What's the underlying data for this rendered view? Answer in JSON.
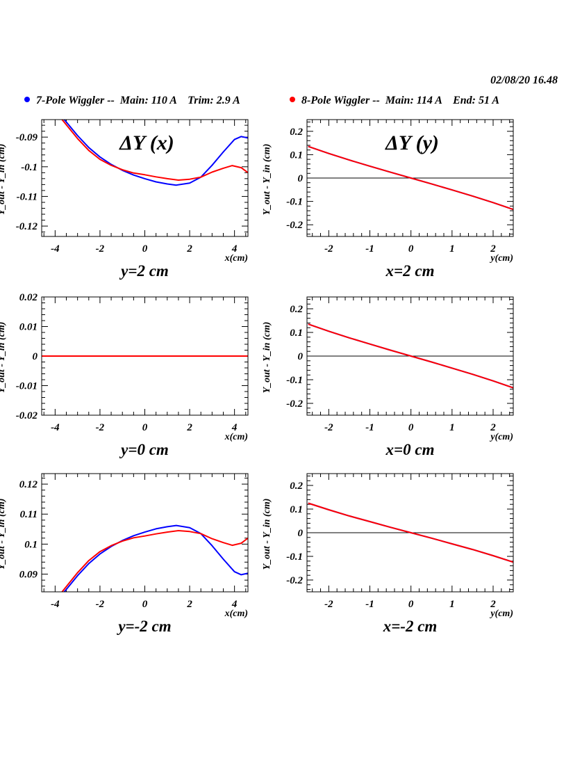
{
  "header": {
    "timestamp": "02/08/20   16.48",
    "legend": [
      {
        "label": "7-Pole Wiggler --  Main: 110 A    Trim: 2.9 A",
        "color": "#0000ff"
      },
      {
        "label": "8-Pole Wiggler --  Main: 114 A    End: 51 A",
        "color": "#ff0000"
      }
    ]
  },
  "chart_data": [
    {
      "type": "line",
      "title": "ΔY (x)",
      "subtitle": "y=2 cm",
      "xlabel": "x(cm)",
      "ylabel": "Y_out - Y_in (cm)",
      "xlim": [
        -4.6,
        4.6
      ],
      "ylim": [
        -0.1235,
        -0.0841
      ],
      "xticks": [
        -4,
        -2,
        0,
        2,
        4
      ],
      "xtick_labels": [
        "-4",
        "-2",
        "0",
        "2",
        "4"
      ],
      "xminor": 0.5,
      "yticks": [
        -0.09,
        -0.1,
        -0.11,
        -0.12
      ],
      "ytick_labels": [
        "-0.09",
        "-0.1",
        "-0.11",
        "-0.12"
      ],
      "yminor": 0.002,
      "zero_line": false,
      "series": [
        {
          "name": "7-Pole Wiggler",
          "color": "#0000ff",
          "x": [
            -3.6,
            -3,
            -2.5,
            -2,
            -1.5,
            -1,
            -0.5,
            0,
            0.5,
            1,
            1.4,
            2,
            2.5,
            3,
            3.5,
            4,
            4.3,
            4.6
          ],
          "y": [
            -0.084,
            -0.0895,
            -0.0935,
            -0.0967,
            -0.0992,
            -0.1012,
            -0.1028,
            -0.104,
            -0.1051,
            -0.1058,
            -0.1062,
            -0.1055,
            -0.1035,
            -0.0995,
            -0.095,
            -0.0908,
            -0.0898,
            -0.0903
          ]
        },
        {
          "name": "8-Pole Wiggler",
          "color": "#ff0000",
          "x": [
            -3.7,
            -3,
            -2.5,
            -2,
            -1.5,
            -1,
            -0.5,
            0,
            0.5,
            1,
            1.5,
            2,
            2.5,
            3,
            3.5,
            3.9,
            4.3,
            4.6
          ],
          "y": [
            -0.084,
            -0.0905,
            -0.0945,
            -0.0975,
            -0.0995,
            -0.101,
            -0.1021,
            -0.1027,
            -0.1034,
            -0.104,
            -0.1045,
            -0.1042,
            -0.1035,
            -0.1018,
            -0.1005,
            -0.0996,
            -0.1003,
            -0.102
          ]
        }
      ]
    },
    {
      "type": "line",
      "title": "ΔY (y)",
      "subtitle": "x=2 cm",
      "xlabel": "y(cm)",
      "ylabel": "Y_out - Y_in (cm)",
      "xlim": [
        -2.53,
        2.49
      ],
      "ylim": [
        -0.25,
        0.25
      ],
      "xticks": [
        -2,
        -1,
        0,
        1,
        2
      ],
      "xtick_labels": [
        "-2",
        "-1",
        "0",
        "1",
        "2"
      ],
      "xminor": 0.2,
      "yticks": [
        0.2,
        0.1,
        0,
        -0.1,
        -0.2
      ],
      "ytick_labels": [
        "0.2",
        "0.1",
        "0",
        "-0.1",
        "-0.2"
      ],
      "yminor": 0.02,
      "zero_line": true,
      "series": [
        {
          "name": "7-Pole Wiggler",
          "color": "#0000ff",
          "x": [
            -2.5,
            -2,
            -1.5,
            -1,
            -0.5,
            0,
            0.5,
            1,
            1.5,
            2,
            2.5
          ],
          "y": [
            0.135,
            0.105,
            0.077,
            0.051,
            0.025,
            0,
            -0.025,
            -0.051,
            -0.077,
            -0.105,
            -0.135
          ]
        },
        {
          "name": "8-Pole Wiggler",
          "color": "#ff0000",
          "x": [
            -2.5,
            -2,
            -1.5,
            -1,
            -0.5,
            0,
            0.5,
            1,
            1.5,
            2,
            2.5
          ],
          "y": [
            0.135,
            0.105,
            0.077,
            0.051,
            0.025,
            0,
            -0.025,
            -0.051,
            -0.077,
            -0.105,
            -0.135
          ]
        }
      ]
    },
    {
      "type": "line",
      "title": "",
      "subtitle": "y=0 cm",
      "xlabel": "x(cm)",
      "ylabel": "Y_out - Y_in (cm)",
      "xlim": [
        -4.6,
        4.6
      ],
      "ylim": [
        -0.02,
        0.02
      ],
      "xticks": [
        -4,
        -2,
        0,
        2,
        4
      ],
      "xtick_labels": [
        "-4",
        "-2",
        "0",
        "2",
        "4"
      ],
      "xminor": 0.5,
      "yticks": [
        0.02,
        0.01,
        0,
        -0.01,
        -0.02
      ],
      "ytick_labels": [
        "0.02",
        "0.01",
        "0",
        "-0.01",
        "-0.02"
      ],
      "yminor": 0.002,
      "zero_line": false,
      "series": [
        {
          "name": "7-Pole Wiggler",
          "color": "#0000ff",
          "x": [
            -4.6,
            4.6
          ],
          "y": [
            0,
            0
          ]
        },
        {
          "name": "8-Pole Wiggler",
          "color": "#ff0000",
          "x": [
            -4.6,
            4.6
          ],
          "y": [
            0,
            0
          ]
        }
      ]
    },
    {
      "type": "line",
      "title": "",
      "subtitle": "x=0 cm",
      "xlabel": "y(cm)",
      "ylabel": "Y_out - Y_in (cm)",
      "xlim": [
        -2.53,
        2.49
      ],
      "ylim": [
        -0.25,
        0.25
      ],
      "xticks": [
        -2,
        -1,
        0,
        1,
        2
      ],
      "xtick_labels": [
        "-2",
        "-1",
        "0",
        "1",
        "2"
      ],
      "xminor": 0.2,
      "yticks": [
        0.2,
        0.1,
        0,
        -0.1,
        -0.2
      ],
      "ytick_labels": [
        "0.2",
        "0.1",
        "0",
        "-0.1",
        "-0.2"
      ],
      "yminor": 0.02,
      "zero_line": true,
      "series": [
        {
          "name": "7-Pole Wiggler",
          "color": "#0000ff",
          "x": [
            -2.5,
            -2,
            -1.5,
            -1,
            -0.5,
            0,
            0.5,
            1,
            1.5,
            2,
            2.5
          ],
          "y": [
            0.135,
            0.105,
            0.077,
            0.051,
            0.025,
            0,
            -0.025,
            -0.051,
            -0.077,
            -0.105,
            -0.135
          ]
        },
        {
          "name": "8-Pole Wiggler",
          "color": "#ff0000",
          "x": [
            -2.5,
            -2,
            -1.5,
            -1,
            -0.5,
            0,
            0.5,
            1,
            1.5,
            2,
            2.5
          ],
          "y": [
            0.135,
            0.105,
            0.077,
            0.051,
            0.025,
            0,
            -0.025,
            -0.051,
            -0.077,
            -0.105,
            -0.135
          ]
        }
      ]
    },
    {
      "type": "line",
      "title": "",
      "subtitle": "y=-2 cm",
      "xlabel": "x(cm)",
      "ylabel": "Y_out - Y_in (cm)",
      "xlim": [
        -4.6,
        4.6
      ],
      "ylim": [
        0.0841,
        0.1235
      ],
      "xticks": [
        -4,
        -2,
        0,
        2,
        4
      ],
      "xtick_labels": [
        "-4",
        "-2",
        "0",
        "2",
        "4"
      ],
      "xminor": 0.5,
      "yticks": [
        0.12,
        0.11,
        0.1,
        0.09
      ],
      "ytick_labels": [
        "0.12",
        "0.11",
        "0.1",
        "0.09"
      ],
      "yminor": 0.002,
      "zero_line": false,
      "series": [
        {
          "name": "7-Pole Wiggler",
          "color": "#0000ff",
          "x": [
            -3.6,
            -3,
            -2.5,
            -2,
            -1.5,
            -1,
            -0.5,
            0,
            0.5,
            1,
            1.4,
            2,
            2.5,
            3,
            3.5,
            4,
            4.3,
            4.6
          ],
          "y": [
            0.084,
            0.0895,
            0.0935,
            0.0967,
            0.0992,
            0.1012,
            0.1028,
            0.104,
            0.1051,
            0.1058,
            0.1062,
            0.1055,
            0.1035,
            0.0995,
            0.095,
            0.0908,
            0.0898,
            0.0903
          ]
        },
        {
          "name": "8-Pole Wiggler",
          "color": "#ff0000",
          "x": [
            -3.7,
            -3,
            -2.5,
            -2,
            -1.5,
            -1,
            -0.5,
            0,
            0.5,
            1,
            1.5,
            2,
            2.5,
            3,
            3.5,
            3.9,
            4.3,
            4.6
          ],
          "y": [
            0.084,
            0.0905,
            0.0945,
            0.0975,
            0.0995,
            0.101,
            0.1021,
            0.1027,
            0.1034,
            0.104,
            0.1045,
            0.1042,
            0.1035,
            0.1018,
            0.1005,
            0.0996,
            0.1003,
            0.102
          ]
        }
      ]
    },
    {
      "type": "line",
      "title": "",
      "subtitle": "x=-2 cm",
      "xlabel": "y(cm)",
      "ylabel": "Y_out - Y_in (cm)",
      "xlim": [
        -2.53,
        2.49
      ],
      "ylim": [
        -0.25,
        0.25
      ],
      "xticks": [
        -2,
        -1,
        0,
        1,
        2
      ],
      "xtick_labels": [
        "-2",
        "-1",
        "0",
        "1",
        "2"
      ],
      "xminor": 0.2,
      "yticks": [
        0.2,
        0.1,
        0,
        -0.1,
        -0.2
      ],
      "ytick_labels": [
        "0.2",
        "0.1",
        "0",
        "-0.1",
        "-0.2"
      ],
      "yminor": 0.02,
      "zero_line": true,
      "series": [
        {
          "name": "7-Pole Wiggler",
          "color": "#0000ff",
          "x": [
            -2.5,
            -2,
            -1.5,
            -1,
            -0.5,
            0,
            0.5,
            1,
            1.5,
            2,
            2.5
          ],
          "y": [
            0.125,
            0.097,
            0.071,
            0.047,
            0.023,
            0,
            -0.023,
            -0.047,
            -0.071,
            -0.097,
            -0.125
          ]
        },
        {
          "name": "8-Pole Wiggler",
          "color": "#ff0000",
          "x": [
            -2.5,
            -2,
            -1.5,
            -1,
            -0.5,
            0,
            0.5,
            1,
            1.5,
            2,
            2.5
          ],
          "y": [
            0.125,
            0.097,
            0.071,
            0.047,
            0.023,
            0,
            -0.023,
            -0.047,
            -0.071,
            -0.097,
            -0.125
          ]
        }
      ]
    }
  ]
}
